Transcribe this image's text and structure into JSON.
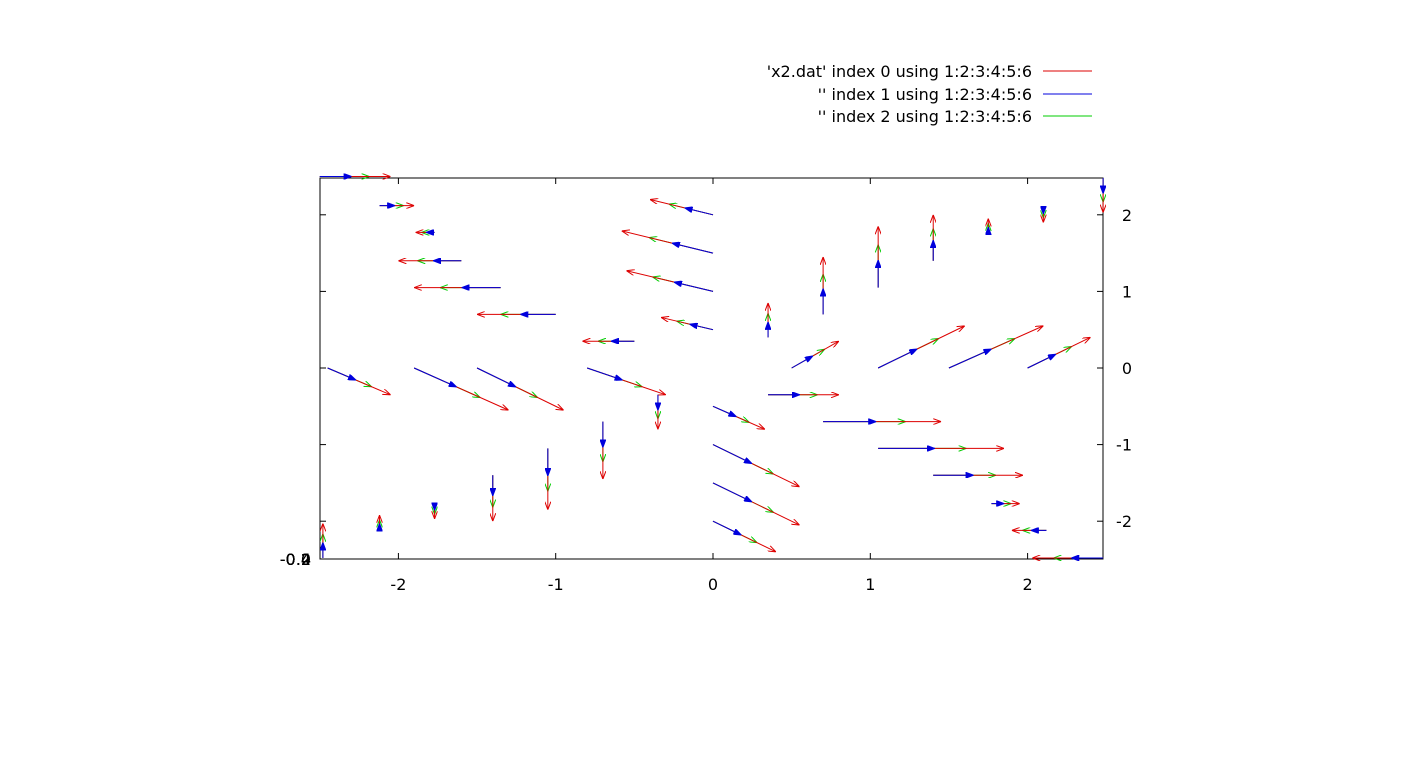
{
  "chart_data": {
    "type": "vector-field",
    "title": "",
    "xlabel": "",
    "ylabel": "",
    "xlim": [
      -2.5,
      2.5
    ],
    "ylim": [
      -2.5,
      2.5
    ],
    "x_ticks": [
      "-2",
      "-1",
      "0",
      "1",
      "2"
    ],
    "y_ticks": [
      "2",
      "1",
      "0",
      "-1",
      "-2"
    ],
    "z_ticks_overlap": [
      "-0.4",
      "-0.2",
      "0",
      "0.2",
      "0.4"
    ],
    "grid": false,
    "legend_position": "top-right",
    "series": [
      {
        "name": "'x2.dat' index 0 using 1:2:3:4:5:6",
        "color": "#dd0000",
        "scale": 1.0
      },
      {
        "name": "'' index 1 using 1:2:3:4:5:6",
        "color": "#0000dd",
        "scale": 0.45
      },
      {
        "name": "'' index 2 using 1:2:3:4:5:6",
        "color": "#00cc00",
        "scale": 0.7
      }
    ],
    "vectors": [
      {
        "x": -2.5,
        "y": 2.5,
        "dx": 0.45,
        "dy": 0.0
      },
      {
        "x": -2.12,
        "y": 2.12,
        "dx": 0.22,
        "dy": 0.0
      },
      {
        "x": -1.77,
        "y": 1.77,
        "dx": -0.12,
        "dy": 0.0
      },
      {
        "x": -1.6,
        "y": 1.4,
        "dx": -0.4,
        "dy": 0.0
      },
      {
        "x": -1.35,
        "y": 1.05,
        "dx": -0.55,
        "dy": 0.0
      },
      {
        "x": -1.0,
        "y": 0.7,
        "dx": -0.5,
        "dy": 0.0
      },
      {
        "x": -0.5,
        "y": 0.35,
        "dx": -0.33,
        "dy": 0.0
      },
      {
        "x": 0.0,
        "y": 2.0,
        "dx": -0.4,
        "dy": 0.2
      },
      {
        "x": 0.0,
        "y": 1.5,
        "dx": -0.58,
        "dy": 0.29
      },
      {
        "x": 0.0,
        "y": 1.0,
        "dx": -0.55,
        "dy": 0.27
      },
      {
        "x": 0.0,
        "y": 0.5,
        "dx": -0.33,
        "dy": 0.16
      },
      {
        "x": -2.45,
        "y": 0.0,
        "dx": 0.4,
        "dy": -0.35
      },
      {
        "x": -1.9,
        "y": 0.0,
        "dx": 0.6,
        "dy": -0.55
      },
      {
        "x": -1.5,
        "y": 0.0,
        "dx": 0.55,
        "dy": -0.55
      },
      {
        "x": -0.8,
        "y": 0.0,
        "dx": 0.5,
        "dy": -0.35
      },
      {
        "x": 0.35,
        "y": 0.4,
        "dx": 0.0,
        "dy": 0.45
      },
      {
        "x": 0.7,
        "y": 0.7,
        "dx": 0.0,
        "dy": 0.75
      },
      {
        "x": 1.05,
        "y": 1.05,
        "dx": 0.0,
        "dy": 0.8
      },
      {
        "x": 1.4,
        "y": 1.4,
        "dx": 0.0,
        "dy": 0.6
      },
      {
        "x": 1.75,
        "y": 1.75,
        "dx": 0.0,
        "dy": 0.2
      },
      {
        "x": 2.1,
        "y": 2.1,
        "dx": 0.0,
        "dy": -0.2
      },
      {
        "x": 2.48,
        "y": 2.48,
        "dx": 0.0,
        "dy": -0.45
      },
      {
        "x": 0.5,
        "y": 0.0,
        "dx": 0.3,
        "dy": 0.35
      },
      {
        "x": 1.05,
        "y": 0.0,
        "dx": 0.55,
        "dy": 0.55
      },
      {
        "x": 1.5,
        "y": 0.0,
        "dx": 0.6,
        "dy": 0.55
      },
      {
        "x": 2.0,
        "y": 0.0,
        "dx": 0.4,
        "dy": 0.4
      },
      {
        "x": -0.35,
        "y": -0.35,
        "dx": 0.0,
        "dy": -0.45
      },
      {
        "x": -0.7,
        "y": -0.7,
        "dx": 0.0,
        "dy": -0.75
      },
      {
        "x": -1.05,
        "y": -1.05,
        "dx": 0.0,
        "dy": -0.8
      },
      {
        "x": -1.4,
        "y": -1.4,
        "dx": 0.0,
        "dy": -0.6
      },
      {
        "x": -1.77,
        "y": -1.77,
        "dx": 0.0,
        "dy": -0.2
      },
      {
        "x": -2.12,
        "y": -2.12,
        "dx": 0.0,
        "dy": 0.2
      },
      {
        "x": -2.48,
        "y": -2.48,
        "dx": 0.0,
        "dy": 0.45
      },
      {
        "x": 0.0,
        "y": -0.5,
        "dx": 0.33,
        "dy": -0.3
      },
      {
        "x": 0.0,
        "y": -1.0,
        "dx": 0.55,
        "dy": -0.55
      },
      {
        "x": 0.0,
        "y": -1.5,
        "dx": 0.55,
        "dy": -0.55
      },
      {
        "x": 0.0,
        "y": -2.0,
        "dx": 0.4,
        "dy": -0.4
      },
      {
        "x": 0.35,
        "y": -0.35,
        "dx": 0.45,
        "dy": 0.0
      },
      {
        "x": 0.7,
        "y": -0.7,
        "dx": 0.75,
        "dy": 0.0
      },
      {
        "x": 1.05,
        "y": -1.05,
        "dx": 0.8,
        "dy": 0.0
      },
      {
        "x": 1.4,
        "y": -1.4,
        "dx": 0.57,
        "dy": 0.0
      },
      {
        "x": 1.77,
        "y": -1.77,
        "dx": 0.18,
        "dy": 0.0
      },
      {
        "x": 2.12,
        "y": -2.12,
        "dx": -0.22,
        "dy": 0.0
      },
      {
        "x": 2.48,
        "y": -2.48,
        "dx": -0.45,
        "dy": 0.0
      }
    ]
  }
}
